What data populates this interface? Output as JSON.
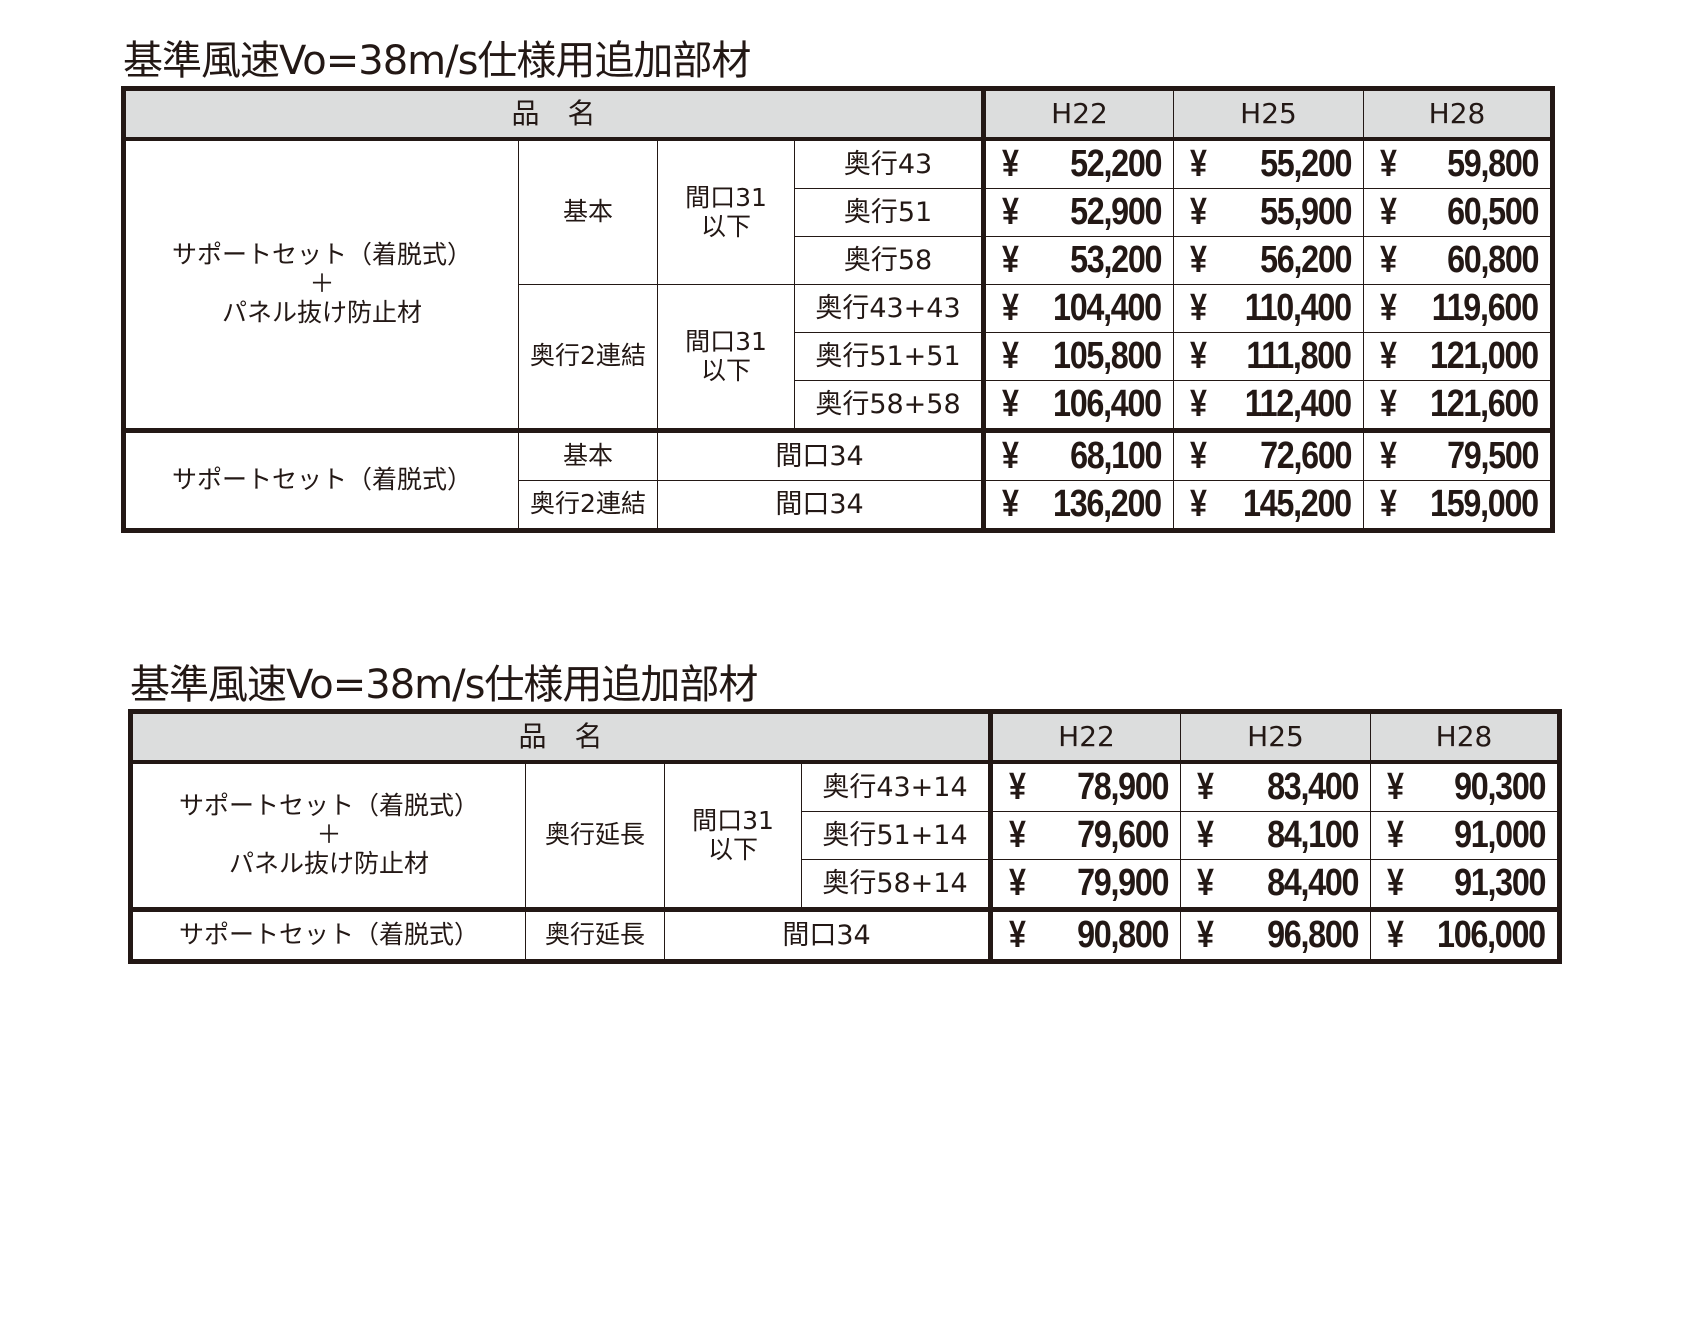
{
  "tables": [
    {
      "title": "基準風速Vo=38m/s仕様用追加部材",
      "header": {
        "name": "品　名",
        "cols": [
          "H22",
          "H25",
          "H28"
        ]
      },
      "groups": [
        {
          "product": "サポートセット（着脱式）\n＋\nパネル抜け防止材",
          "types": [
            {
              "type": "基本",
              "width": "間口31\n以下",
              "rows": [
                {
                  "depth": "奥行43",
                  "prices": [
                    "52,200",
                    "55,200",
                    "59,800"
                  ]
                },
                {
                  "depth": "奥行51",
                  "prices": [
                    "52,900",
                    "55,900",
                    "60,500"
                  ]
                },
                {
                  "depth": "奥行58",
                  "prices": [
                    "53,200",
                    "56,200",
                    "60,800"
                  ]
                }
              ]
            },
            {
              "type": "奥行2連結",
              "width": "間口31\n以下",
              "rows": [
                {
                  "depth": "奥行43+43",
                  "prices": [
                    "104,400",
                    "110,400",
                    "119,600"
                  ]
                },
                {
                  "depth": "奥行51+51",
                  "prices": [
                    "105,800",
                    "111,800",
                    "121,000"
                  ]
                },
                {
                  "depth": "奥行58+58",
                  "prices": [
                    "106,400",
                    "112,400",
                    "121,600"
                  ]
                }
              ]
            }
          ]
        },
        {
          "product": "サポートセット（着脱式）",
          "rows": [
            {
              "type": "基本",
              "width": "間口34",
              "prices": [
                "68,100",
                "72,600",
                "79,500"
              ]
            },
            {
              "type": "奥行2連結",
              "width": "間口34",
              "prices": [
                "136,200",
                "145,200",
                "159,000"
              ]
            }
          ]
        }
      ]
    },
    {
      "title": "基準風速Vo=38m/s仕様用追加部材",
      "header": {
        "name": "品　名",
        "cols": [
          "H22",
          "H25",
          "H28"
        ]
      },
      "groups": [
        {
          "product": "サポートセット（着脱式）\n＋\nパネル抜け防止材",
          "type": "奥行延長",
          "width": "間口31\n以下",
          "rows": [
            {
              "depth": "奥行43+14",
              "prices": [
                "78,900",
                "83,400",
                "90,300"
              ]
            },
            {
              "depth": "奥行51+14",
              "prices": [
                "79,600",
                "84,100",
                "91,000"
              ]
            },
            {
              "depth": "奥行58+14",
              "prices": [
                "79,900",
                "84,400",
                "91,300"
              ]
            }
          ]
        },
        {
          "product": "サポートセット（着脱式）",
          "type": "奥行延長",
          "width": "間口34",
          "prices": [
            "90,800",
            "96,800",
            "106,000"
          ]
        }
      ]
    }
  ],
  "currency_symbol": "¥",
  "colors": {
    "header_bg": "#dcdddd",
    "border": "#231815",
    "text": "#231815"
  }
}
